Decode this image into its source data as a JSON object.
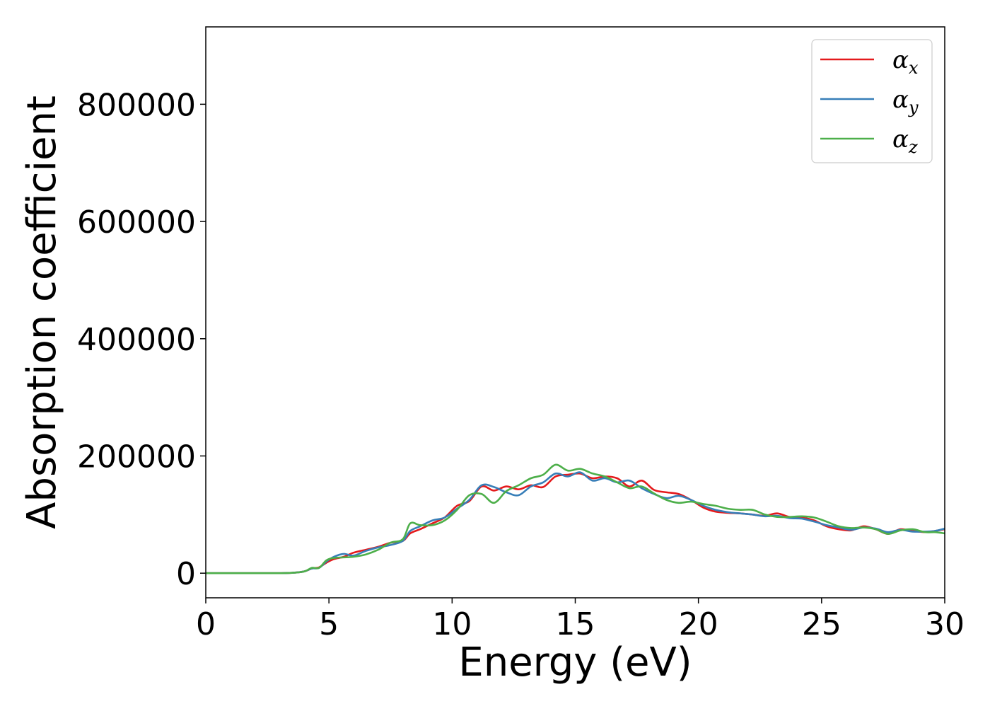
{
  "chart_data": {
    "type": "line",
    "title": "",
    "xlabel": "Energy (eV)",
    "ylabel": "Absorption coefficient",
    "xlim": [
      0,
      30
    ],
    "ylim": [
      -42000,
      932000
    ],
    "xticks": [
      0,
      5,
      10,
      15,
      20,
      25,
      30
    ],
    "yticks": [
      0,
      200000,
      400000,
      600000,
      800000
    ],
    "grid": false,
    "legend_position": "top-right",
    "series": [
      {
        "name": "α",
        "subscript": "x",
        "color": "#e41a1c",
        "x": [
          0,
          1,
          2,
          3,
          3.5,
          4,
          4.3,
          4.6,
          4.9,
          5.2,
          5.6,
          6,
          6.5,
          7,
          7.5,
          8,
          8.3,
          8.7,
          9.2,
          9.7,
          10.2,
          10.7,
          11.2,
          11.7,
          12.2,
          12.7,
          13.2,
          13.7,
          14.2,
          14.7,
          15.2,
          15.7,
          16.2,
          16.7,
          17.2,
          17.7,
          18.2,
          18.7,
          19.2,
          19.7,
          20.2,
          20.7,
          21.2,
          21.7,
          22.2,
          22.7,
          23.2,
          23.7,
          24.2,
          24.7,
          25.2,
          25.7,
          26.2,
          26.7,
          27.2,
          27.7,
          28.2,
          28.7,
          29.2,
          29.6,
          30
        ],
        "y": [
          0,
          0,
          0,
          0,
          600,
          3000,
          8000,
          10000,
          18000,
          24000,
          28000,
          35000,
          40000,
          45000,
          52000,
          55000,
          68000,
          75000,
          85000,
          95000,
          115000,
          123000,
          148000,
          141000,
          148000,
          143000,
          150000,
          147000,
          165000,
          168000,
          170000,
          162000,
          165000,
          162000,
          148000,
          158000,
          142000,
          138000,
          135000,
          125000,
          112000,
          105000,
          103000,
          102000,
          100000,
          98000,
          102000,
          96000,
          95000,
          90000,
          80000,
          75000,
          73000,
          80000,
          75000,
          67000,
          75000,
          72000,
          70000,
          72000,
          75000
        ]
      },
      {
        "name": "α",
        "subscript": "y",
        "color": "#377eb8",
        "x": [
          0,
          1,
          2,
          3,
          3.5,
          4,
          4.3,
          4.6,
          4.9,
          5.2,
          5.6,
          6,
          6.5,
          7,
          7.5,
          8,
          8.3,
          8.7,
          9.2,
          9.7,
          10.2,
          10.7,
          11.2,
          11.7,
          12.2,
          12.7,
          13.2,
          13.7,
          14.2,
          14.7,
          15.2,
          15.7,
          16.2,
          16.7,
          17.2,
          17.7,
          18.2,
          18.7,
          19.2,
          19.7,
          20.2,
          20.7,
          21.2,
          21.7,
          22.2,
          22.7,
          23.2,
          23.7,
          24.2,
          24.7,
          25.2,
          25.7,
          26.2,
          26.7,
          27.2,
          27.7,
          28.2,
          28.7,
          29.2,
          29.6,
          30
        ],
        "y": [
          0,
          0,
          0,
          0,
          600,
          3000,
          8000,
          9000,
          20000,
          28000,
          33000,
          30000,
          38000,
          44000,
          48000,
          55000,
          72000,
          80000,
          90000,
          95000,
          110000,
          125000,
          150000,
          147000,
          138000,
          133000,
          148000,
          155000,
          170000,
          165000,
          172000,
          158000,
          162000,
          155000,
          158000,
          145000,
          135000,
          128000,
          132000,
          125000,
          115000,
          108000,
          104000,
          102000,
          100000,
          97000,
          98000,
          94000,
          93000,
          88000,
          82000,
          78000,
          74000,
          78000,
          76000,
          70000,
          74000,
          71000,
          71000,
          72000,
          76000
        ]
      },
      {
        "name": "α",
        "subscript": "z",
        "color": "#4daf4a",
        "x": [
          0,
          1,
          2,
          3,
          3.5,
          4,
          4.3,
          4.6,
          4.9,
          5.2,
          5.6,
          6,
          6.5,
          7,
          7.5,
          8,
          8.3,
          8.7,
          9.2,
          9.7,
          10.2,
          10.7,
          11.2,
          11.7,
          12.2,
          12.7,
          13.2,
          13.7,
          14.2,
          14.7,
          15.2,
          15.7,
          16.2,
          16.7,
          17.2,
          17.7,
          18.2,
          18.7,
          19.2,
          19.7,
          20.2,
          20.7,
          21.2,
          21.7,
          22.2,
          22.7,
          23.2,
          23.7,
          24.2,
          24.7,
          25.2,
          25.7,
          26.2,
          26.7,
          27.2,
          27.7,
          28.2,
          28.7,
          29.2,
          29.6,
          30
        ],
        "y": [
          0,
          0,
          0,
          0,
          600,
          3000,
          9000,
          9000,
          22000,
          26000,
          27000,
          28000,
          32000,
          40000,
          52000,
          58000,
          85000,
          82000,
          82000,
          90000,
          108000,
          133000,
          135000,
          120000,
          140000,
          150000,
          162000,
          168000,
          185000,
          175000,
          178000,
          170000,
          165000,
          155000,
          145000,
          148000,
          136000,
          125000,
          120000,
          122000,
          118000,
          115000,
          110000,
          108000,
          108000,
          100000,
          96000,
          96000,
          97000,
          95000,
          88000,
          80000,
          77000,
          78000,
          75000,
          67000,
          73000,
          75000,
          70000,
          70000,
          68000
        ]
      }
    ]
  }
}
